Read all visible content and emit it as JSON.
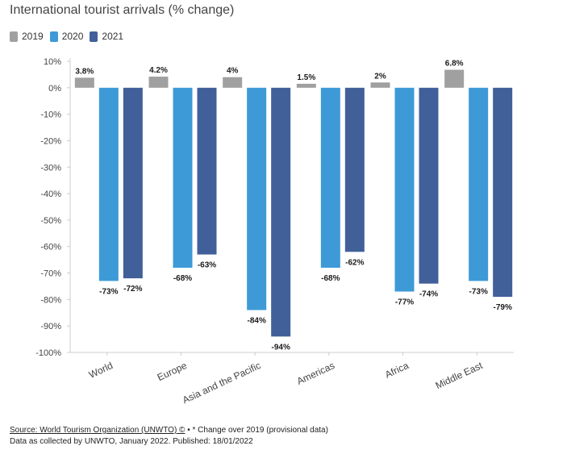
{
  "title": "International tourist arrivals (% change)",
  "footer": {
    "source_link": "Source: World Tourism Organization (UNWTO) ©",
    "separator": " • ",
    "note": "* Change over 2019 (provisional data)",
    "line2": "Data as collected by UNWTO, January 2022. Published: 18/01/2022"
  },
  "colors": {
    "2019": "#a0a0a0",
    "2020": "#3d9ad7",
    "2021": "#41609a",
    "axis": "#cccccc",
    "label": "#1a1a1a",
    "tick": "#444444"
  },
  "chart_data": {
    "type": "bar",
    "title": "International tourist arrivals (% change)",
    "categories": [
      "World",
      "Europe",
      "Asia and the Pacific",
      "Americas",
      "Africa",
      "Middle East"
    ],
    "series": [
      {
        "name": "2019",
        "values": [
          3.8,
          4.2,
          4,
          1.5,
          2,
          6.8
        ],
        "labels": [
          "3.8%",
          "4.2%",
          "4%",
          "1.5%",
          "2%",
          "6.8%"
        ]
      },
      {
        "name": "2020",
        "values": [
          -73,
          -68,
          -84,
          -68,
          -77,
          -73
        ],
        "labels": [
          "-73%",
          "-68%",
          "-84%",
          "-68%",
          "-77%",
          "-73%"
        ]
      },
      {
        "name": "2021",
        "values": [
          -72,
          -63,
          -94,
          -62,
          -74,
          -79
        ],
        "labels": [
          "-72%",
          "-63%",
          "-94%",
          "-62%",
          "-74%",
          "-79%"
        ]
      }
    ],
    "ylim": [
      -100,
      10
    ],
    "yticks": [
      10,
      0,
      -10,
      -20,
      -30,
      -40,
      -50,
      -60,
      -70,
      -80,
      -90,
      -100
    ],
    "ytick_labels": [
      "10%",
      "0%",
      "-10%",
      "-20%",
      "-30%",
      "-40%",
      "-50%",
      "-60%",
      "-70%",
      "-80%",
      "-90%",
      "-100%"
    ],
    "legend": "top-left",
    "grid": false
  }
}
